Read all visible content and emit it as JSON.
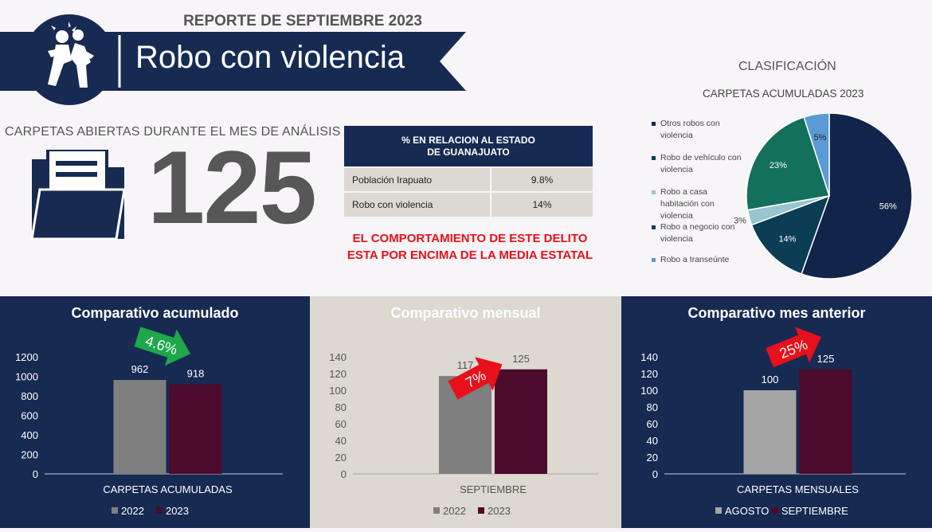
{
  "header": {
    "report_title": "REPORTE DE SEPTIEMBRE 2023",
    "crime_title": "Robo con violencia"
  },
  "summary": {
    "label": "CARPETAS ABIERTAS DURANTE EL MES DE ANÁLISIS",
    "count": "125"
  },
  "table": {
    "header_line1": "% EN RELACION AL ESTADO",
    "header_line2": "DE GUANAJUATO",
    "rows": [
      {
        "label": "Población Irapuato",
        "value": "9.8%"
      },
      {
        "label": "Robo con violencia",
        "value": "14%"
      }
    ]
  },
  "alert": {
    "line1": "EL COMPORTAMIENTO DE ESTE DELITO",
    "line2": "ESTA POR ENCIMA DE LA MEDIA ESTATAL"
  },
  "classification": {
    "title": "CLASIFICACIÓN"
  },
  "colors": {
    "navy": "#172a52",
    "maroon": "#4c0a2c",
    "gray": "#7f7f7f",
    "light_gray": "#a6a6a6",
    "red": "#e8101a",
    "green": "#1ea84a"
  },
  "chart_data": [
    {
      "type": "pie",
      "title": "CARPETAS ACUMULADAS 2023",
      "slices": [
        {
          "label": "Otros robos con violencia",
          "value": 56,
          "display": "56%",
          "color": "#13244a"
        },
        {
          "label": "Robo de vehículo con violencia",
          "value": 14,
          "display": "14%",
          "color": "#0b3d55"
        },
        {
          "label": "Robo a casa habitación con violencia",
          "value": 3,
          "display": "3%",
          "color": "#98c5cf"
        },
        {
          "label": "Robo a negocio con violencia",
          "value": 23,
          "display": "23%",
          "color": "#12705c"
        },
        {
          "label": "Robo a transeúnte",
          "value": 5,
          "display": "5%",
          "color": "#5b9bd5"
        }
      ],
      "legend": "left"
    },
    {
      "type": "bar",
      "title": "Comparativo acumulado",
      "categories": [
        "CARPETAS ACUMULADAS"
      ],
      "series": [
        {
          "name": "2022",
          "values": [
            962
          ],
          "color": "#7f7f7f"
        },
        {
          "name": "2023",
          "values": [
            918
          ],
          "color": "#4c0a2c"
        }
      ],
      "ylim": [
        0,
        1200
      ],
      "yticks": [
        0,
        200,
        400,
        600,
        800,
        1000,
        1200
      ],
      "change": {
        "label": "4.6%",
        "direction": "down",
        "color": "#1ea84a"
      },
      "legend": "bottom"
    },
    {
      "type": "bar",
      "title": "Comparativo mensual",
      "categories": [
        "SEPTIEMBRE"
      ],
      "series": [
        {
          "name": "2022",
          "values": [
            117
          ],
          "color": "#7f7f7f"
        },
        {
          "name": "2023",
          "values": [
            125
          ],
          "color": "#4c0a2c"
        }
      ],
      "ylim": [
        0,
        140
      ],
      "yticks": [
        0,
        20,
        40,
        60,
        80,
        100,
        120,
        140
      ],
      "change": {
        "label": "7%",
        "direction": "up",
        "color": "#e8101a"
      },
      "legend": "bottom"
    },
    {
      "type": "bar",
      "title": "Comparativo mes anterior",
      "categories": [
        "CARPETAS MENSUALES"
      ],
      "series": [
        {
          "name": "AGOSTO",
          "values": [
            100
          ],
          "color": "#a6a6a6"
        },
        {
          "name": "SEPTIEMBRE",
          "values": [
            125
          ],
          "color": "#4c0a2c"
        }
      ],
      "ylim": [
        0,
        140
      ],
      "yticks": [
        0,
        20,
        40,
        60,
        80,
        100,
        120,
        140
      ],
      "change": {
        "label": "25%",
        "direction": "up",
        "color": "#e8101a"
      },
      "legend": "bottom"
    }
  ]
}
